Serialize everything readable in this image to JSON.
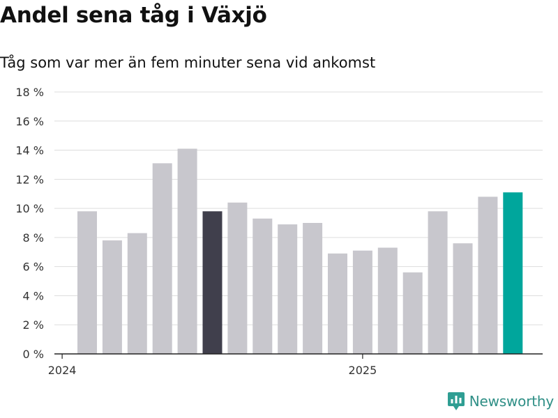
{
  "title": "Andel sena tåg i Växjö",
  "subtitle": "Tåg som var mer än fem minuter sena vid ankomst",
  "brand": {
    "name": "Newsworthy",
    "icon": "newsworthy-logo-icon",
    "color": "#2f9e93"
  },
  "colors": {
    "bar": "#c8c7cd",
    "highlight_dark": "#403f4c",
    "highlight_latest": "#00a69c",
    "grid": "#dddddd",
    "axis": "#222222"
  },
  "chart_data": {
    "type": "bar",
    "x": [
      "2024-01",
      "2024-02",
      "2024-03",
      "2024-04",
      "2024-05",
      "2024-06",
      "2024-07",
      "2024-08",
      "2024-09",
      "2024-10",
      "2024-11",
      "2024-12",
      "2025-01",
      "2025-02",
      "2025-03",
      "2025-04",
      "2025-05",
      "2025-06"
    ],
    "values": [
      9.8,
      7.8,
      8.3,
      13.1,
      14.1,
      9.8,
      10.4,
      9.3,
      8.9,
      9.0,
      6.9,
      7.1,
      7.3,
      5.6,
      9.8,
      7.6,
      10.8,
      11.1
    ],
    "highlight": {
      "2024-06": "highlight_dark",
      "2025-06": "highlight_latest"
    },
    "ylim": [
      0,
      18
    ],
    "yticks": [
      0,
      2,
      4,
      6,
      8,
      10,
      12,
      14,
      16,
      18
    ],
    "ytick_labels": [
      "0 %",
      "2 %",
      "4 %",
      "6 %",
      "8 %",
      "10 %",
      "12 %",
      "14 %",
      "16 %",
      "18 %"
    ],
    "xticks": [
      {
        "x": "2024-01",
        "label": "2024"
      },
      {
        "x": "2025-01",
        "label": "2025"
      }
    ],
    "grid": true,
    "legend": "none"
  }
}
